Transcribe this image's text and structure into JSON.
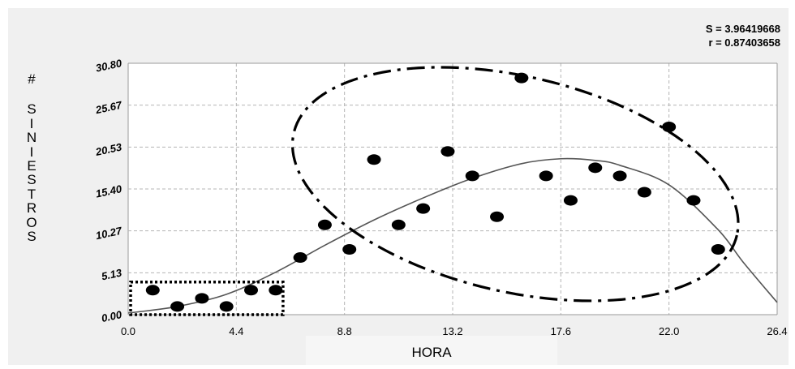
{
  "chart_data": {
    "type": "scatter",
    "title": "",
    "xlabel": "HORA",
    "ylabel": "#  SINIESTROS",
    "xlim": [
      0,
      26.4
    ],
    "ylim": [
      0,
      30.8
    ],
    "x_ticks": [
      "0.0",
      "4.4",
      "8.8",
      "13.2",
      "17.6",
      "22.0",
      "26.4"
    ],
    "y_ticks": [
      "0.00",
      "5.13",
      "10.27",
      "15.40",
      "20.53",
      "25.67",
      "30.80"
    ],
    "grid": true,
    "stats": {
      "S": "S = 3.96419668",
      "r": "r = 0.87403658"
    },
    "series": [
      {
        "type": "scatter",
        "color": "#000000",
        "points": [
          {
            "x": 1,
            "y": 3
          },
          {
            "x": 2,
            "y": 1
          },
          {
            "x": 3,
            "y": 2
          },
          {
            "x": 4,
            "y": 1
          },
          {
            "x": 5,
            "y": 3
          },
          {
            "x": 6,
            "y": 3
          },
          {
            "x": 7,
            "y": 7
          },
          {
            "x": 8,
            "y": 11
          },
          {
            "x": 9,
            "y": 8
          },
          {
            "x": 10,
            "y": 19
          },
          {
            "x": 11,
            "y": 11
          },
          {
            "x": 12,
            "y": 13
          },
          {
            "x": 13,
            "y": 20
          },
          {
            "x": 14,
            "y": 17
          },
          {
            "x": 15,
            "y": 12
          },
          {
            "x": 16,
            "y": 29
          },
          {
            "x": 17,
            "y": 17
          },
          {
            "x": 18,
            "y": 14
          },
          {
            "x": 19,
            "y": 18
          },
          {
            "x": 20,
            "y": 17
          },
          {
            "x": 21,
            "y": 15
          },
          {
            "x": 22,
            "y": 23
          },
          {
            "x": 23,
            "y": 14
          },
          {
            "x": 24,
            "y": 8
          }
        ]
      },
      {
        "type": "line",
        "color": "#555555",
        "points": [
          {
            "x": 0,
            "y": 0.2
          },
          {
            "x": 2,
            "y": 1.0
          },
          {
            "x": 4,
            "y": 2.5
          },
          {
            "x": 6,
            "y": 5.2
          },
          {
            "x": 8,
            "y": 8.5
          },
          {
            "x": 10,
            "y": 11.6
          },
          {
            "x": 12,
            "y": 14.3
          },
          {
            "x": 14,
            "y": 16.7
          },
          {
            "x": 16,
            "y": 18.5
          },
          {
            "x": 17.6,
            "y": 19.1
          },
          {
            "x": 19,
            "y": 18.9
          },
          {
            "x": 20,
            "y": 18.3
          },
          {
            "x": 22,
            "y": 15.9
          },
          {
            "x": 24,
            "y": 10.4
          },
          {
            "x": 25,
            "y": 6.5
          },
          {
            "x": 26.4,
            "y": 1.5
          }
        ]
      }
    ],
    "annotations": [
      {
        "type": "dotted-rectangle",
        "x": [
          0.1,
          6.3
        ],
        "y": [
          0,
          4
        ]
      },
      {
        "type": "dash-dot-ellipse",
        "center": [
          15.75,
          16.0
        ],
        "radii": [
          9.25,
          13.2
        ],
        "rotation_deg": 13
      }
    ]
  }
}
